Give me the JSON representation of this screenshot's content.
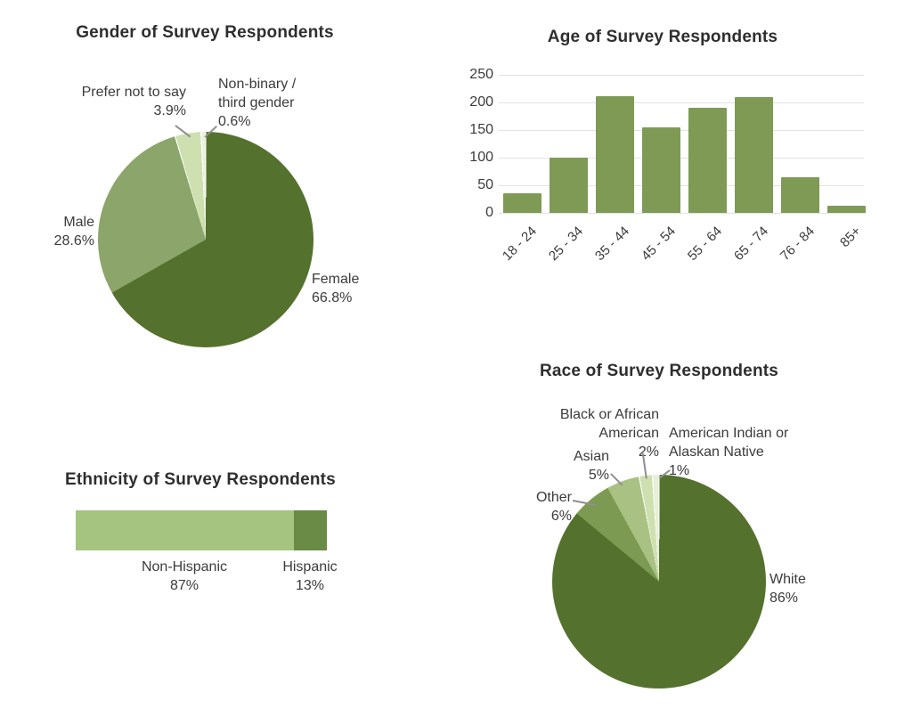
{
  "chart_data": [
    {
      "id": "gender",
      "type": "pie",
      "title": "Gender of Survey Respondents",
      "direction": "clockwise",
      "start_angle_deg": 0,
      "slices": [
        {
          "label": "Female",
          "pct": 66.8,
          "pct_label": "66.8%",
          "color": "#55712e"
        },
        {
          "label": "Male",
          "pct": 28.6,
          "pct_label": "28.6%",
          "color": "#8ca56a"
        },
        {
          "label": "Prefer not to say",
          "pct": 3.9,
          "pct_label": "3.9%",
          "color": "#cfe0b0"
        },
        {
          "label": "Non-binary / third gender",
          "pct": 0.6,
          "pct_label": "0.6%",
          "label_lines": [
            "Non-binary /",
            "third gender"
          ],
          "color": "#eaf1dd"
        }
      ]
    },
    {
      "id": "age",
      "type": "bar",
      "title": "Age of Survey Respondents",
      "categories": [
        "18 - 24",
        "25 - 34",
        "35 - 44",
        "45 - 54",
        "55 - 64",
        "65 - 74",
        "76 - 84",
        "85+"
      ],
      "values": [
        36,
        100,
        212,
        155,
        191,
        209,
        64,
        13
      ],
      "bar_color": "#7e9a55",
      "ylim": [
        0,
        250
      ],
      "yticks": [
        0,
        50,
        100,
        150,
        200,
        250
      ],
      "grid": true,
      "gridline_color": "#e2e2e2",
      "xlabel": "",
      "ylabel": ""
    },
    {
      "id": "ethnicity",
      "type": "stacked-bar",
      "title": "Ethnicity of Survey Respondents",
      "segments": [
        {
          "label": "Non-Hispanic",
          "pct": 87,
          "pct_label": "87%",
          "color": "#a4c47f"
        },
        {
          "label": "Hispanic",
          "pct": 13,
          "pct_label": "13%",
          "color": "#698b45"
        }
      ]
    },
    {
      "id": "race",
      "type": "pie",
      "title": "Race of Survey Respondents",
      "direction": "clockwise",
      "start_angle_deg": 0,
      "slices": [
        {
          "label": "White",
          "pct": 86,
          "pct_label": "86%",
          "color": "#55712e"
        },
        {
          "label": "Other",
          "pct": 6,
          "pct_label": "6%",
          "color": "#7d9a52"
        },
        {
          "label": "Asian",
          "pct": 5,
          "pct_label": "5%",
          "color": "#a9c183"
        },
        {
          "label": "Black or African American",
          "pct": 2,
          "pct_label": "2%",
          "label_lines": [
            "Black or African",
            "American"
          ],
          "color": "#cfe0b0"
        },
        {
          "label": "American Indian or Alaskan Native",
          "pct": 1,
          "pct_label": "1%",
          "label_lines": [
            "American Indian or",
            "Alaskan Native"
          ],
          "color": "#e6efd8"
        }
      ]
    }
  ]
}
